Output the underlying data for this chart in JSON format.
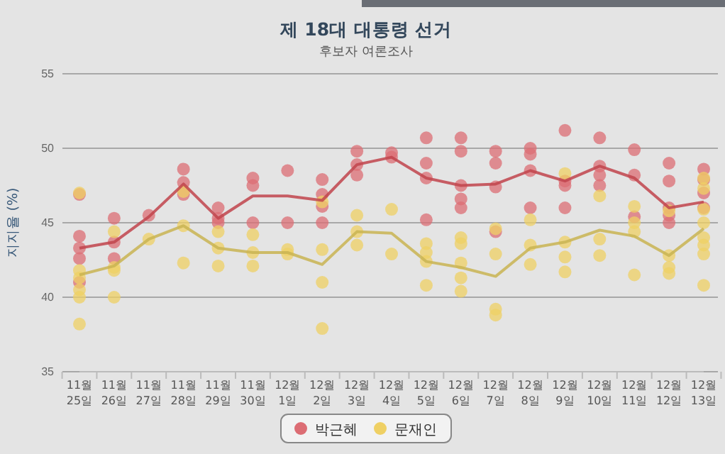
{
  "chart_data": {
    "type": "scatter",
    "title": "제 18대 대통령 선거",
    "subtitle": "후보자 여론조사",
    "ylabel": "지지율 (%)",
    "categories": [
      "11월 25일",
      "11월 26일",
      "11월 27일",
      "11월 28일",
      "11월 29일",
      "11월 30일",
      "12월 1일",
      "12월 2일",
      "12월 3일",
      "12월 4일",
      "12월 5일",
      "12월 6일",
      "12월 7일",
      "12월 8일",
      "12월 9일",
      "12월 10일",
      "12월 11일",
      "12월 12일",
      "12월 13일"
    ],
    "ylim": [
      35,
      55
    ],
    "yticks": [
      35,
      40,
      45,
      50,
      55
    ],
    "grid": "y",
    "legend": "bottom",
    "marker": "circle",
    "series": [
      {
        "name": "박근혜",
        "color": "#dc6d74",
        "x": [
          "11월 25일",
          "11월 25일",
          "11월 25일",
          "11월 25일",
          "11월 25일",
          "11월 25일",
          "11월 26일",
          "11월 26일",
          "11월 26일",
          "11월 27일",
          "11월 28일",
          "11월 28일",
          "11월 28일",
          "11월 29일",
          "11월 29일",
          "11월 29일",
          "11월 30일",
          "11월 30일",
          "11월 30일",
          "12월 1일",
          "12월 1일",
          "12월 2일",
          "12월 2일",
          "12월 2일",
          "12월 2일",
          "12월 3일",
          "12월 3일",
          "12월 3일",
          "12월 4일",
          "12월 4일",
          "12월 5일",
          "12월 5일",
          "12월 5일",
          "12월 5일",
          "12월 6일",
          "12월 6일",
          "12월 6일",
          "12월 6일",
          "12월 6일",
          "12월 7일",
          "12월 7일",
          "12월 7일",
          "12월 7일",
          "12월 8일",
          "12월 8일",
          "12월 8일",
          "12월 8일",
          "12월 9일",
          "12월 9일",
          "12월 9일",
          "12월 9일",
          "12월 10일",
          "12월 10일",
          "12월 10일",
          "12월 10일",
          "12월 11일",
          "12월 11일",
          "12월 11일",
          "12월 12일",
          "12월 12일",
          "12월 12일",
          "12월 12일",
          "12월 12일",
          "12월 13일",
          "12월 13일",
          "12월 13일",
          "12월 13일",
          "12월 13일"
        ],
        "values": [
          46.9,
          44.1,
          43.3,
          42.6,
          null,
          41.0,
          45.3,
          43.7,
          42.6,
          45.5,
          48.6,
          47.7,
          46.9,
          46.0,
          45.3,
          45.0,
          48.0,
          47.5,
          45.0,
          48.5,
          45.0,
          47.9,
          46.9,
          46.1,
          45.0,
          49.8,
          48.9,
          48.2,
          49.7,
          49.4,
          50.7,
          49.0,
          48.0,
          45.2,
          50.7,
          49.8,
          47.5,
          46.6,
          46.0,
          49.8,
          49.0,
          47.4,
          44.4,
          50.0,
          49.6,
          48.5,
          46.0,
          51.2,
          47.8,
          47.5,
          46.0,
          50.7,
          48.8,
          48.2,
          47.5,
          49.9,
          48.2,
          45.4,
          49.0,
          47.8,
          46.0,
          45.5,
          45.0,
          48.6,
          47.9,
          47.0,
          46.0,
          null
        ]
      },
      {
        "name": "문재인",
        "color": "#efd064",
        "x": [
          "11월 25일",
          "11월 25일",
          "11월 25일",
          "11월 25일",
          "11월 25일",
          "11월 25일",
          "11월 26일",
          "11월 26일",
          "11월 26일",
          "11월 26일",
          "11월 27일",
          "11월 28일",
          "11월 28일",
          "11월 28일",
          "11월 29일",
          "11월 29일",
          "11월 29일",
          "11월 30일",
          "11월 30일",
          "11월 30일",
          "12월 1일",
          "12월 1일",
          "12월 2일",
          "12월 2일",
          "12월 2일",
          "12월 2일",
          "12월 3일",
          "12월 3일",
          "12월 3일",
          "12월 4일",
          "12월 4일",
          "12월 5일",
          "12월 5일",
          "12월 5일",
          "12월 5일",
          "12월 6일",
          "12월 6일",
          "12월 6일",
          "12월 6일",
          "12월 6일",
          "12월 7일",
          "12월 7일",
          "12월 7일",
          "12월 7일",
          "12월 8일",
          "12월 8일",
          "12월 8일",
          "12월 9일",
          "12월 9일",
          "12월 9일",
          "12월 9일",
          "12월 10일",
          "12월 10일",
          "12월 10일",
          "12월 11일",
          "12월 11일",
          "12월 11일",
          "12월 11일",
          "12월 12일",
          "12월 12일",
          "12월 12일",
          "12월 12일",
          "12월 13일",
          "12월 13일",
          "12월 13일",
          "12월 13일",
          "12월 13일",
          "12월 13일",
          "12월 13일",
          "12월 13일"
        ],
        "values": [
          47.0,
          41.8,
          41.3,
          40.5,
          40.0,
          38.2,
          44.4,
          42.0,
          41.8,
          40.0,
          43.9,
          47.1,
          44.8,
          42.3,
          44.4,
          43.3,
          42.1,
          44.2,
          43.0,
          42.1,
          43.2,
          42.9,
          46.4,
          43.2,
          41.0,
          37.9,
          45.5,
          44.4,
          43.5,
          45.9,
          42.9,
          43.6,
          43.0,
          42.4,
          40.8,
          44.0,
          43.6,
          42.3,
          41.3,
          40.4,
          44.6,
          42.9,
          39.2,
          38.8,
          45.2,
          43.5,
          42.2,
          48.3,
          43.7,
          42.7,
          41.7,
          46.8,
          43.9,
          42.8,
          46.1,
          45.0,
          44.4,
          41.5,
          45.8,
          42.8,
          42.0,
          41.6,
          48.0,
          47.3,
          45.9,
          45.0,
          44.0,
          43.5,
          42.9,
          40.8
        ]
      },
      {
        "type": "line",
        "marker": "none",
        "color": "#c1444c",
        "values": [
          43.3,
          43.7,
          45.4,
          47.6,
          45.3,
          46.8,
          46.8,
          46.5,
          48.9,
          49.4,
          48.0,
          47.5,
          47.6,
          48.5,
          47.8,
          48.8,
          48.0,
          46.0,
          46.4
        ]
      },
      {
        "type": "line",
        "marker": "none",
        "color": "#c9b452",
        "values": [
          41.5,
          42.1,
          43.9,
          44.8,
          43.3,
          43.0,
          43.0,
          42.2,
          44.4,
          44.3,
          42.4,
          42.0,
          41.4,
          43.3,
          43.7,
          44.5,
          44.1,
          42.8,
          44.6
        ]
      }
    ]
  }
}
